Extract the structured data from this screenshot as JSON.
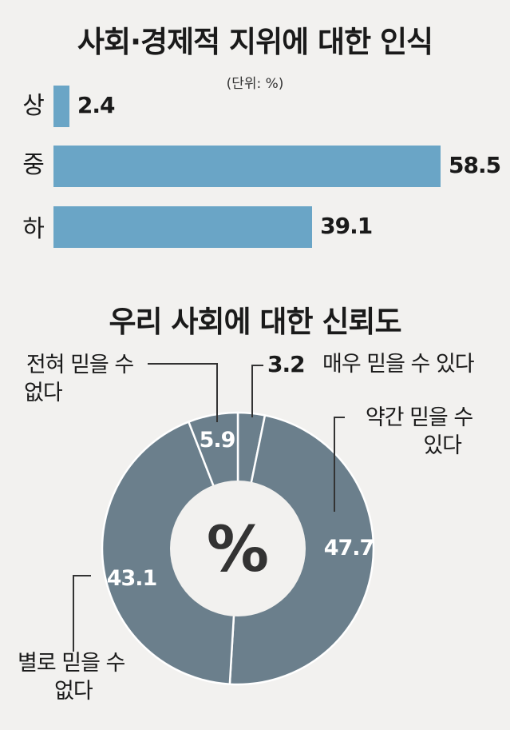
{
  "chart_data": [
    {
      "type": "bar",
      "orientation": "horizontal",
      "title": "사회·경제적 지위에 대한 인식",
      "unit": "(단위: %)",
      "categories": [
        "상",
        "중",
        "하"
      ],
      "values": [
        2.4,
        58.5,
        39.1
      ],
      "value_labels": [
        "2.4",
        "58.5",
        "39.1"
      ],
      "color": "#6aa5c6",
      "xlim": [
        0,
        58.5
      ]
    },
    {
      "type": "pie",
      "variant": "donut",
      "title": "우리 사회에 대한 신뢰도",
      "center_label": "%",
      "slices": [
        {
          "label_lines": [
            "매우 믿을 수 있다"
          ],
          "value": 3.2,
          "value_label": "3.2"
        },
        {
          "label_lines": [
            "약간 믿을 수",
            "있다"
          ],
          "value": 47.7,
          "value_label": "47.7"
        },
        {
          "label_lines": [
            "별로 믿을 수",
            "없다"
          ],
          "value": 43.1,
          "value_label": "43.1"
        },
        {
          "label_lines": [
            "전혀 믿을 수",
            "없다"
          ],
          "value": 5.9,
          "value_label": "5.9"
        }
      ],
      "color": "#6b7f8c"
    }
  ]
}
